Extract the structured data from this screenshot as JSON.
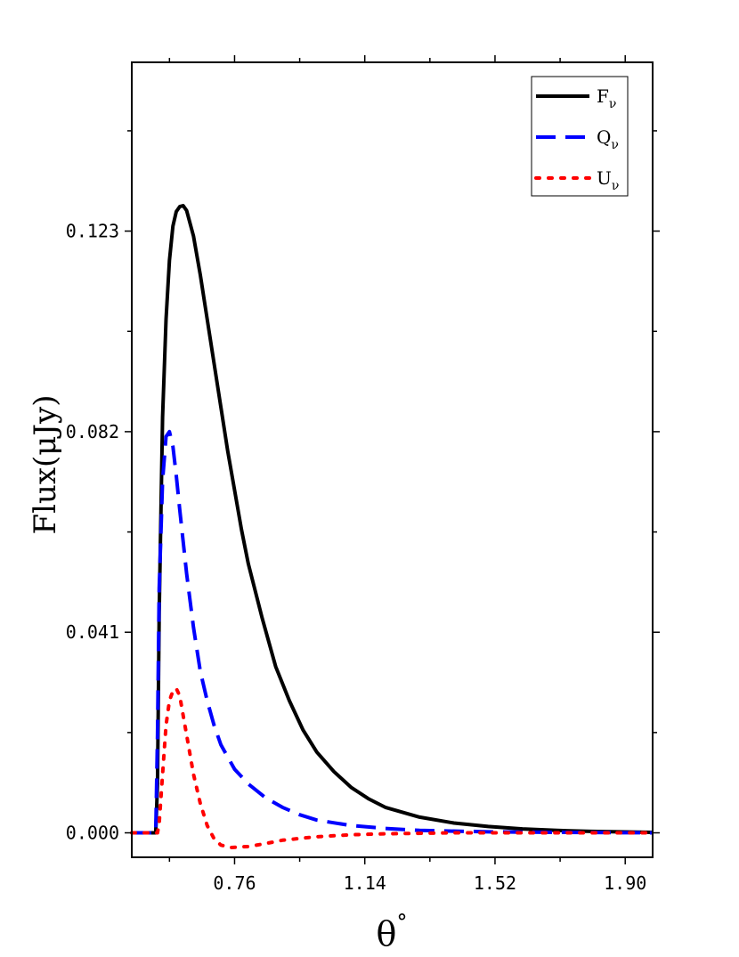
{
  "chart_data": {
    "type": "line",
    "xlabel": "θ",
    "xlabel_sup": "°",
    "ylabel": "Flux(μJy)",
    "xlim": [
      0.46,
      1.98
    ],
    "ylim": [
      -0.005,
      0.1575
    ],
    "x_ticks": [
      0.76,
      1.14,
      1.52,
      1.9
    ],
    "x_tick_labels": [
      "0.76",
      "1.14",
      "1.52",
      "1.90"
    ],
    "y_ticks": [
      0.0,
      0.041,
      0.082,
      0.123
    ],
    "y_tick_labels": [
      "0.000",
      "0.041",
      "0.082",
      "0.123"
    ],
    "legend_position": "top-right",
    "grid": false,
    "series": [
      {
        "name": "F",
        "name_sub": "ν",
        "color": "#000000",
        "style": "solid",
        "points": [
          [
            0.46,
            0
          ],
          [
            0.53,
            0
          ],
          [
            0.535,
            0.01
          ],
          [
            0.54,
            0.045
          ],
          [
            0.55,
            0.085
          ],
          [
            0.56,
            0.105
          ],
          [
            0.57,
            0.117
          ],
          [
            0.58,
            0.124
          ],
          [
            0.59,
            0.127
          ],
          [
            0.6,
            0.128
          ],
          [
            0.61,
            0.1282
          ],
          [
            0.62,
            0.1272
          ],
          [
            0.64,
            0.122
          ],
          [
            0.66,
            0.114
          ],
          [
            0.68,
            0.105
          ],
          [
            0.7,
            0.096
          ],
          [
            0.72,
            0.087
          ],
          [
            0.74,
            0.078
          ],
          [
            0.76,
            0.07
          ],
          [
            0.78,
            0.062
          ],
          [
            0.8,
            0.055
          ],
          [
            0.84,
            0.044
          ],
          [
            0.88,
            0.034
          ],
          [
            0.92,
            0.027
          ],
          [
            0.96,
            0.021
          ],
          [
            1.0,
            0.0165
          ],
          [
            1.05,
            0.0125
          ],
          [
            1.1,
            0.0093
          ],
          [
            1.15,
            0.007
          ],
          [
            1.2,
            0.0052
          ],
          [
            1.3,
            0.0032
          ],
          [
            1.4,
            0.002
          ],
          [
            1.5,
            0.0013
          ],
          [
            1.6,
            0.0008
          ],
          [
            1.7,
            0.0005
          ],
          [
            1.8,
            0.0003
          ],
          [
            1.98,
            0.0001
          ]
        ]
      },
      {
        "name": "Q",
        "name_sub": "ν",
        "color": "#0000ff",
        "style": "dashed",
        "points": [
          [
            0.46,
            0
          ],
          [
            0.53,
            0
          ],
          [
            0.535,
            0.02
          ],
          [
            0.54,
            0.05
          ],
          [
            0.55,
            0.072
          ],
          [
            0.56,
            0.081
          ],
          [
            0.57,
            0.082
          ],
          [
            0.58,
            0.079
          ],
          [
            0.59,
            0.073
          ],
          [
            0.6,
            0.066
          ],
          [
            0.62,
            0.053
          ],
          [
            0.64,
            0.042
          ],
          [
            0.66,
            0.033
          ],
          [
            0.68,
            0.027
          ],
          [
            0.7,
            0.022
          ],
          [
            0.72,
            0.018
          ],
          [
            0.76,
            0.013
          ],
          [
            0.8,
            0.01
          ],
          [
            0.85,
            0.0072
          ],
          [
            0.9,
            0.0052
          ],
          [
            0.95,
            0.0037
          ],
          [
            1.0,
            0.0026
          ],
          [
            1.1,
            0.0015
          ],
          [
            1.2,
            0.0009
          ],
          [
            1.3,
            0.0005
          ],
          [
            1.5,
            0.0002
          ],
          [
            1.7,
            0.0001
          ],
          [
            1.98,
            0
          ]
        ]
      },
      {
        "name": "U",
        "name_sub": "ν",
        "color": "#ff0000",
        "style": "dotted",
        "points": [
          [
            0.46,
            0
          ],
          [
            0.535,
            0
          ],
          [
            0.54,
            0.002
          ],
          [
            0.55,
            0.012
          ],
          [
            0.56,
            0.022
          ],
          [
            0.57,
            0.027
          ],
          [
            0.58,
            0.029
          ],
          [
            0.59,
            0.0295
          ],
          [
            0.6,
            0.028
          ],
          [
            0.61,
            0.024
          ],
          [
            0.62,
            0.02
          ],
          [
            0.64,
            0.012
          ],
          [
            0.66,
            0.006
          ],
          [
            0.68,
            0.0015
          ],
          [
            0.7,
            -0.0012
          ],
          [
            0.72,
            -0.0025
          ],
          [
            0.75,
            -0.003
          ],
          [
            0.8,
            -0.0028
          ],
          [
            0.85,
            -0.0022
          ],
          [
            0.9,
            -0.0015
          ],
          [
            1.0,
            -0.0008
          ],
          [
            1.1,
            -0.0004
          ],
          [
            1.2,
            -0.0002
          ],
          [
            1.4,
            0
          ],
          [
            1.98,
            0
          ]
        ]
      }
    ]
  }
}
